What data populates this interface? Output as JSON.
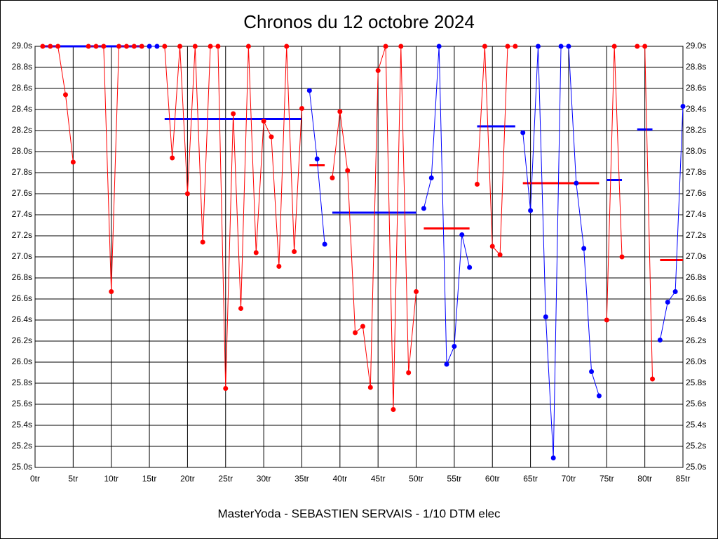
{
  "chart_data": {
    "type": "line",
    "title": "Chronos du 12 octobre 2024",
    "x_label": "MasterYoda - SEBASTIEN SERVAIS - 1/10 DTM elec",
    "xlim": [
      0,
      85
    ],
    "ylim": [
      25.0,
      29.0
    ],
    "grid": true,
    "xticks": [
      {
        "value": 0,
        "label": "0tr"
      },
      {
        "value": 5,
        "label": "5tr"
      },
      {
        "value": 10,
        "label": "10tr"
      },
      {
        "value": 15,
        "label": "15tr"
      },
      {
        "value": 20,
        "label": "20tr"
      },
      {
        "value": 25,
        "label": "25tr"
      },
      {
        "value": 30,
        "label": "30tr"
      },
      {
        "value": 35,
        "label": "35tr"
      },
      {
        "value": 40,
        "label": "40tr"
      },
      {
        "value": 45,
        "label": "45tr"
      },
      {
        "value": 50,
        "label": "50tr"
      },
      {
        "value": 55,
        "label": "55tr"
      },
      {
        "value": 60,
        "label": "60tr"
      },
      {
        "value": 65,
        "label": "65tr"
      },
      {
        "value": 70,
        "label": "70tr"
      },
      {
        "value": 75,
        "label": "75tr"
      },
      {
        "value": 80,
        "label": "80tr"
      },
      {
        "value": 85,
        "label": "85tr"
      }
    ],
    "yticks": [
      {
        "value": 25.0,
        "label": "25.0s"
      },
      {
        "value": 25.2,
        "label": "25.2s"
      },
      {
        "value": 25.4,
        "label": "25.4s"
      },
      {
        "value": 25.6,
        "label": "25.6s"
      },
      {
        "value": 25.8,
        "label": "25.8s"
      },
      {
        "value": 26.0,
        "label": "26.0s"
      },
      {
        "value": 26.2,
        "label": "26.2s"
      },
      {
        "value": 26.4,
        "label": "26.4s"
      },
      {
        "value": 26.6,
        "label": "26.6s"
      },
      {
        "value": 26.8,
        "label": "26.8s"
      },
      {
        "value": 27.0,
        "label": "27.0s"
      },
      {
        "value": 27.2,
        "label": "27.2s"
      },
      {
        "value": 27.4,
        "label": "27.4s"
      },
      {
        "value": 27.6,
        "label": "27.6s"
      },
      {
        "value": 27.8,
        "label": "27.8s"
      },
      {
        "value": 28.0,
        "label": "28.0s"
      },
      {
        "value": 28.2,
        "label": "28.2s"
      },
      {
        "value": 28.4,
        "label": "28.4s"
      },
      {
        "value": 28.6,
        "label": "28.6s"
      },
      {
        "value": 28.8,
        "label": "28.8s"
      },
      {
        "value": 29.0,
        "label": "29.0s"
      }
    ],
    "series": [
      {
        "color": "#ff0000",
        "x": [
          1,
          2,
          3,
          4,
          5
        ],
        "values": [
          29.0,
          29.0,
          29.0,
          28.54,
          27.9
        ]
      },
      {
        "color": "#ff0000",
        "x": [
          7,
          8,
          9,
          10,
          11,
          12,
          13,
          14
        ],
        "values": [
          29.0,
          29.0,
          29.0,
          26.67,
          29.0,
          29.0,
          29.0,
          29.0
        ]
      },
      {
        "color": "#0000ff",
        "x": [
          15,
          16
        ],
        "values": [
          29.0,
          29.0
        ]
      },
      {
        "color": "#ff0000",
        "x": [
          17,
          18,
          19,
          20,
          21,
          22,
          23,
          24,
          25,
          26,
          27,
          28,
          29,
          30,
          31,
          32,
          33,
          34,
          35
        ],
        "values": [
          29.0,
          27.94,
          29.0,
          27.6,
          29.0,
          27.14,
          29.0,
          29.0,
          25.75,
          28.36,
          26.51,
          29.0,
          27.04,
          28.29,
          28.14,
          26.91,
          29.0,
          27.05,
          28.41
        ]
      },
      {
        "color": "#0000ff",
        "x": [
          36,
          37,
          38
        ],
        "values": [
          28.58,
          27.93,
          27.12
        ]
      },
      {
        "color": "#ff0000",
        "x": [
          39,
          40,
          41,
          42,
          43,
          44,
          45,
          46,
          47,
          48,
          49,
          50
        ],
        "values": [
          27.75,
          28.38,
          27.82,
          26.28,
          26.34,
          25.76,
          28.77,
          29.0,
          25.55,
          29.0,
          25.9,
          26.67
        ]
      },
      {
        "color": "#0000ff",
        "x": [
          51,
          52,
          53,
          54,
          55,
          56,
          57
        ],
        "values": [
          27.46,
          27.75,
          29.0,
          25.98,
          26.15,
          27.21,
          26.9
        ]
      },
      {
        "color": "#ff0000",
        "x": [
          58,
          59,
          60,
          61,
          62,
          63
        ],
        "values": [
          27.69,
          29.0,
          27.1,
          27.02,
          29.0,
          29.0
        ]
      },
      {
        "color": "#0000ff",
        "x": [
          64,
          65,
          66,
          67,
          68,
          69,
          70,
          71,
          72,
          73,
          74
        ],
        "values": [
          28.18,
          27.44,
          29.0,
          26.43,
          25.09,
          29.0,
          29.0,
          27.7,
          27.08,
          25.91,
          25.68
        ]
      },
      {
        "color": "#ff0000",
        "x": [
          75,
          76,
          77
        ],
        "values": [
          26.4,
          29.0,
          27.0
        ]
      },
      {
        "color": "#ff0000",
        "x": [
          79,
          80,
          81
        ],
        "values": [
          29.0,
          29.0,
          25.84
        ]
      },
      {
        "color": "#0000ff",
        "x": [
          82,
          83,
          84,
          85
        ],
        "values": [
          26.21,
          26.57,
          26.67,
          28.43
        ]
      }
    ],
    "averages": [
      {
        "color": "#0000ff",
        "x": [
          1,
          5
        ],
        "value": 29.0
      },
      {
        "color": "#0000ff",
        "x": [
          5,
          14
        ],
        "value": 29.0
      },
      {
        "color": "#0000ff",
        "x": [
          17,
          35
        ],
        "value": 28.31
      },
      {
        "color": "#ff0000",
        "x": [
          36,
          38
        ],
        "value": 27.87
      },
      {
        "color": "#0000ff",
        "x": [
          39,
          50
        ],
        "value": 27.42
      },
      {
        "color": "#ff0000",
        "x": [
          51,
          57
        ],
        "value": 27.27
      },
      {
        "color": "#0000ff",
        "x": [
          58,
          63
        ],
        "value": 28.24
      },
      {
        "color": "#ff0000",
        "x": [
          64,
          74
        ],
        "value": 27.7
      },
      {
        "color": "#0000ff",
        "x": [
          75,
          77
        ],
        "value": 27.73
      },
      {
        "color": "#0000ff",
        "x": [
          79,
          81
        ],
        "value": 28.21
      },
      {
        "color": "#ff0000",
        "x": [
          82,
          85
        ],
        "value": 26.97
      }
    ]
  }
}
